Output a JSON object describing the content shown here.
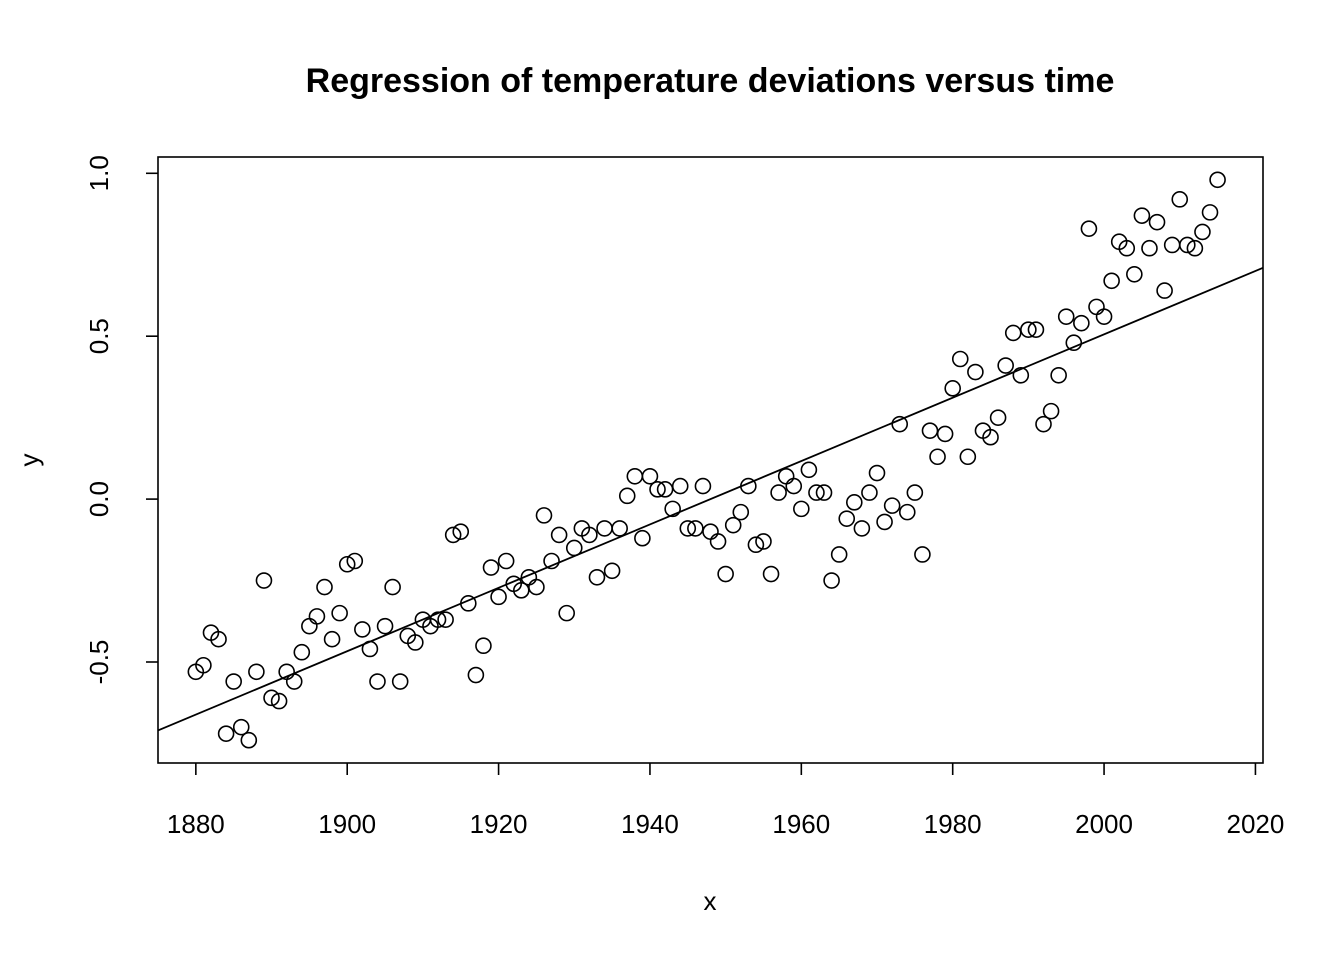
{
  "chart_data": {
    "type": "scatter",
    "title": "Regression of temperature deviations versus time",
    "xlabel": "x",
    "ylabel": "y",
    "xlim": [
      1875,
      2021
    ],
    "ylim": [
      -0.81,
      1.05
    ],
    "x_ticks": [
      1880,
      1900,
      1920,
      1940,
      1960,
      1980,
      2000,
      2020
    ],
    "x_tick_labels": [
      "1880",
      "1900",
      "1920",
      "1940",
      "1960",
      "1980",
      "2000",
      "2020"
    ],
    "y_ticks": [
      -0.5,
      0.0,
      0.5,
      1.0
    ],
    "y_tick_labels": [
      "-0.5",
      "0.0",
      "0.5",
      "1.0"
    ],
    "grid": false,
    "legend": "none",
    "series": [
      {
        "x": [
          1880,
          1881,
          1882,
          1883,
          1884,
          1885,
          1886,
          1887,
          1888,
          1889,
          1890,
          1891,
          1892,
          1893,
          1894,
          1895,
          1896,
          1897,
          1898,
          1899,
          1900,
          1901,
          1902,
          1903,
          1904,
          1905,
          1906,
          1907,
          1908,
          1909,
          1910,
          1911,
          1912,
          1913,
          1914,
          1915,
          1916,
          1917,
          1918,
          1919,
          1920,
          1921,
          1922,
          1923,
          1924,
          1925,
          1926,
          1927,
          1928,
          1929,
          1930,
          1931,
          1932,
          1933,
          1934,
          1935,
          1936,
          1937,
          1938,
          1939,
          1940,
          1941,
          1942,
          1943,
          1944,
          1945,
          1946,
          1947,
          1948,
          1949,
          1950,
          1951,
          1952,
          1953,
          1954,
          1955,
          1956,
          1957,
          1958,
          1959,
          1960,
          1961,
          1962,
          1963,
          1964,
          1965,
          1966,
          1967,
          1968,
          1969,
          1970,
          1971,
          1972,
          1973,
          1974,
          1975,
          1976,
          1977,
          1978,
          1979,
          1980,
          1981,
          1982,
          1983,
          1984,
          1985,
          1986,
          1987,
          1988,
          1989,
          1990,
          1991,
          1992,
          1993,
          1994,
          1995,
          1996,
          1997,
          1998,
          1999,
          2000,
          2001,
          2002,
          2003,
          2004,
          2005,
          2006,
          2007,
          2008,
          2009,
          2010,
          2011,
          2012,
          2013,
          2014,
          2015
        ],
        "y": [
          -0.53,
          -0.51,
          -0.41,
          -0.43,
          -0.72,
          -0.56,
          -0.7,
          -0.74,
          -0.53,
          -0.25,
          -0.61,
          -0.62,
          -0.53,
          -0.56,
          -0.47,
          -0.39,
          -0.36,
          -0.27,
          -0.43,
          -0.35,
          -0.2,
          -0.19,
          -0.4,
          -0.46,
          -0.56,
          -0.39,
          -0.27,
          -0.56,
          -0.42,
          -0.44,
          -0.37,
          -0.39,
          -0.37,
          -0.37,
          -0.11,
          -0.1,
          -0.32,
          -0.54,
          -0.45,
          -0.21,
          -0.3,
          -0.19,
          -0.26,
          -0.28,
          -0.24,
          -0.27,
          -0.05,
          -0.19,
          -0.11,
          -0.35,
          -0.15,
          -0.09,
          -0.11,
          -0.24,
          -0.09,
          -0.22,
          -0.09,
          0.01,
          0.07,
          -0.12,
          0.07,
          0.03,
          0.03,
          -0.03,
          0.04,
          -0.09,
          -0.09,
          0.04,
          -0.1,
          -0.13,
          -0.23,
          -0.08,
          -0.04,
          0.04,
          -0.14,
          -0.13,
          -0.23,
          0.02,
          0.07,
          0.04,
          -0.03,
          0.09,
          0.02,
          0.02,
          -0.25,
          -0.17,
          -0.06,
          -0.01,
          -0.09,
          0.02,
          0.08,
          -0.07,
          -0.02,
          0.23,
          -0.04,
          0.02,
          -0.17,
          0.21,
          0.13,
          0.2,
          0.34,
          0.43,
          0.13,
          0.39,
          0.21,
          0.19,
          0.25,
          0.41,
          0.51,
          0.38,
          0.52,
          0.52,
          0.23,
          0.27,
          0.38,
          0.56,
          0.48,
          0.54,
          0.83,
          0.59,
          0.56,
          0.67,
          0.79,
          0.77,
          0.69,
          0.87,
          0.77,
          0.85,
          0.64,
          0.78,
          0.92,
          0.78,
          0.77,
          0.82,
          0.88,
          0.98
        ]
      }
    ],
    "regression_line": {
      "x": [
        1875,
        2021
      ],
      "y": [
        -0.71,
        0.71
      ]
    }
  }
}
